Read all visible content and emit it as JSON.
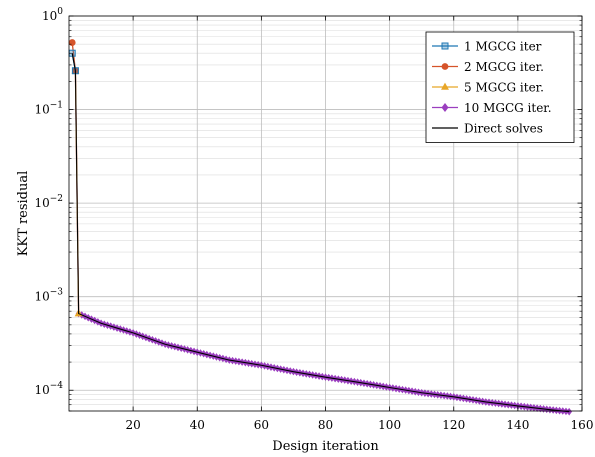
{
  "chart_data": {
    "type": "line",
    "xlabel": "Design iteration",
    "ylabel": "KKT residual",
    "yscale": "log",
    "xlim": [
      0,
      160
    ],
    "ylim": [
      6e-05,
      1
    ],
    "grid": true,
    "legend_position": "top-right",
    "x_ticks": [
      {
        "value": 20,
        "label": "20"
      },
      {
        "value": 40,
        "label": "40"
      },
      {
        "value": 60,
        "label": "60"
      },
      {
        "value": 80,
        "label": "80"
      },
      {
        "value": 100,
        "label": "100"
      },
      {
        "value": 120,
        "label": "120"
      },
      {
        "value": 140,
        "label": "140"
      },
      {
        "value": 160,
        "label": "160"
      }
    ],
    "y_ticks": [
      {
        "value": 1,
        "base": "10",
        "exp": "0"
      },
      {
        "value": 0.1,
        "base": "10",
        "exp": "−1"
      },
      {
        "value": 0.01,
        "base": "10",
        "exp": "−2"
      },
      {
        "value": 0.001,
        "base": "10",
        "exp": "−3"
      },
      {
        "value": 0.0001,
        "base": "10",
        "exp": "−4"
      }
    ],
    "series": [
      {
        "name": "1 MGCG iter",
        "color": "#1f77b4",
        "marker": "square",
        "x": [
          1,
          2
        ],
        "y": [
          0.4,
          0.26
        ]
      },
      {
        "name": "2 MGCG iter.",
        "color": "#d6542a",
        "marker": "circle",
        "x": [
          1,
          2
        ],
        "y": [
          0.52,
          0.26
        ]
      },
      {
        "name": "5 MGCG iter.",
        "color": "#e8a628",
        "marker": "triangle",
        "x": [
          2,
          3
        ],
        "y": [
          0.26,
          0.00066
        ]
      },
      {
        "name": "10 MGCG iter.",
        "color": "#9b3fbf",
        "marker": "diamond",
        "x": [
          2,
          3,
          10,
          20,
          30,
          40,
          50,
          60,
          70,
          80,
          90,
          100,
          110,
          120,
          130,
          140,
          150,
          156
        ],
        "y": [
          0.26,
          0.00066,
          0.00052,
          0.00041,
          0.00031,
          0.000255,
          0.00021,
          0.000185,
          0.000158,
          0.000138,
          0.000122,
          0.000107,
          9.4e-05,
          8.5e-05,
          7.5e-05,
          6.8e-05,
          6.2e-05,
          5.9e-05
        ]
      },
      {
        "name": "Direct solves",
        "color": "#000000",
        "marker": "none",
        "x": [
          1,
          2,
          3,
          10,
          20,
          30,
          40,
          50,
          60,
          70,
          80,
          90,
          100,
          110,
          120,
          130,
          140,
          150,
          156
        ],
        "y": [
          0.4,
          0.26,
          0.00066,
          0.00052,
          0.00041,
          0.00031,
          0.000255,
          0.00021,
          0.000185,
          0.000158,
          0.000138,
          0.000122,
          0.000107,
          9.4e-05,
          8.5e-05,
          7.5e-05,
          6.8e-05,
          6.2e-05,
          5.9e-05
        ]
      }
    ]
  }
}
